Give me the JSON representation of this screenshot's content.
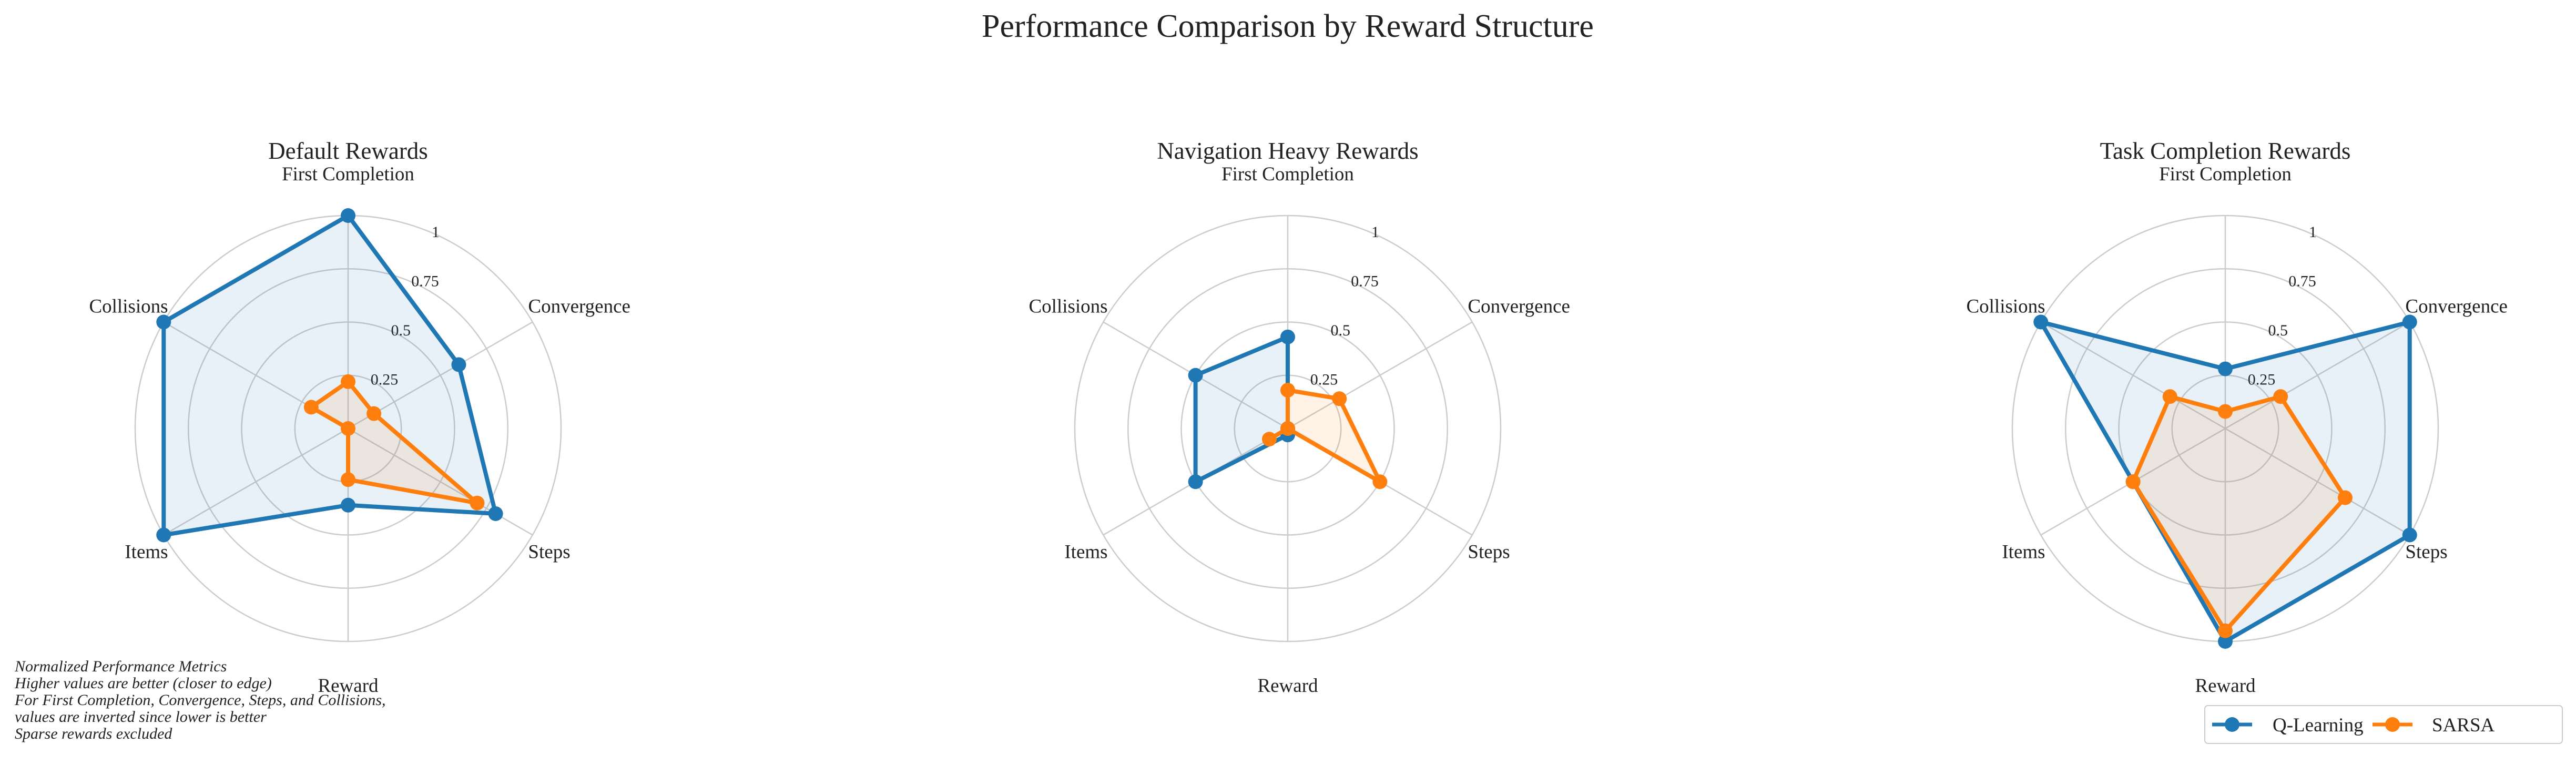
{
  "figure_title": "Performance Comparison by Reward Structure",
  "notes": [
    "Normalized Performance Metrics",
    "Higher values are better (closer to edge)",
    "For First Completion, Convergence, Steps, and Collisions,",
    "values are inverted since lower is better",
    "Sparse rewards excluded"
  ],
  "colors": {
    "Q-Learning": "#1f77b4",
    "SARSA": "#ff7f0e",
    "grid": "#cccccc"
  },
  "chart_data": [
    {
      "type": "radar",
      "title": "Default Rewards",
      "axes": [
        "First Completion",
        "Convergence",
        "Steps",
        "Reward",
        "Items",
        "Collisions"
      ],
      "rticks": [
        "0.25",
        "0.5",
        "0.75",
        "1"
      ],
      "rlim": [
        0,
        1
      ],
      "series": [
        {
          "name": "Q-Learning",
          "values": [
            1.0,
            0.6,
            0.8,
            0.36,
            1.0,
            1.0
          ]
        },
        {
          "name": "SARSA",
          "values": [
            0.22,
            0.14,
            0.7,
            0.24,
            0.0,
            0.2
          ]
        }
      ]
    },
    {
      "type": "radar",
      "title": "Navigation Heavy Rewards",
      "axes": [
        "First Completion",
        "Convergence",
        "Steps",
        "Reward",
        "Items",
        "Collisions"
      ],
      "rticks": [
        "0.25",
        "0.5",
        "0.75",
        "1"
      ],
      "rlim": [
        0,
        1
      ],
      "series": [
        {
          "name": "Q-Learning",
          "values": [
            0.43,
            0.0,
            0.0,
            0.03,
            0.5,
            0.5
          ]
        },
        {
          "name": "SARSA",
          "values": [
            0.18,
            0.28,
            0.5,
            0.0,
            0.1,
            0.0
          ]
        }
      ]
    },
    {
      "type": "radar",
      "title": "Task Completion Rewards",
      "axes": [
        "First Completion",
        "Convergence",
        "Steps",
        "Reward",
        "Items",
        "Collisions"
      ],
      "rticks": [
        "0.25",
        "0.5",
        "0.75",
        "1"
      ],
      "rlim": [
        0,
        1
      ],
      "series": [
        {
          "name": "Q-Learning",
          "values": [
            0.28,
            1.0,
            1.0,
            1.0,
            0.5,
            1.0
          ]
        },
        {
          "name": "SARSA",
          "values": [
            0.08,
            0.3,
            0.65,
            0.95,
            0.5,
            0.3
          ]
        }
      ]
    }
  ],
  "legend": {
    "placement": "bottom-right",
    "entries": [
      "Q-Learning",
      "SARSA"
    ]
  }
}
